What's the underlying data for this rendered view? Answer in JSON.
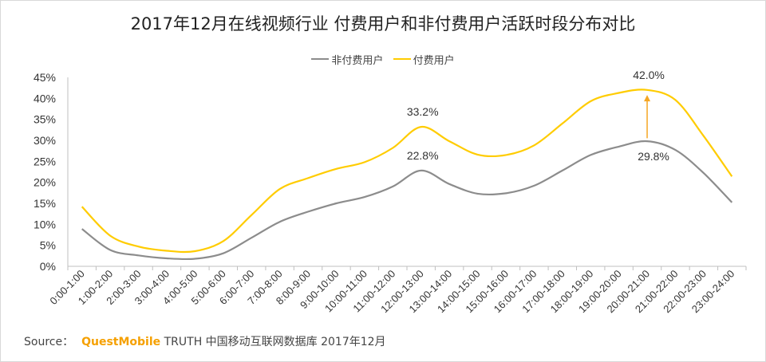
{
  "page": {
    "title": "2017年12月在线视频行业 付费用户和非付费用户活跃时段分布对比",
    "source_label": "Source：",
    "source_brand": "QuestMobile",
    "source_rest": "TRUTH 中国移动互联网数据库 2017年12月"
  },
  "colors": {
    "non_paying": "#8c8c8c",
    "paying": "#ffcc00",
    "arrow": "#f5a623",
    "axis": "#bfbfbf"
  },
  "chart_data": {
    "type": "line",
    "title": "2017年12月在线视频行业 付费用户和非付费用户活跃时段分布对比",
    "xlabel": "",
    "ylabel": "",
    "ylim": [
      0,
      45
    ],
    "y_ticks": [
      "0%",
      "5%",
      "10%",
      "15%",
      "20%",
      "25%",
      "30%",
      "35%",
      "40%",
      "45%"
    ],
    "legend_position": "top-center",
    "categories": [
      "0:00-1:00",
      "1:00-2:00",
      "2:00-3:00",
      "3:00-4:00",
      "4:00-5:00",
      "5:00-6:00",
      "6:00-7:00",
      "7:00-8:00",
      "8:00-9:00",
      "9:00-10:00",
      "10:00-11:00",
      "11:00-12:00",
      "12:00-13:00",
      "13:00-14:00",
      "14:00-15:00",
      "15:00-16:00",
      "16:00-17:00",
      "17:00-18:00",
      "18:00-19:00",
      "19:00-20:00",
      "20:00-21:00",
      "21:00-22:00",
      "22:00-23:00",
      "23:00-24:00"
    ],
    "series": [
      {
        "name": "非付费用户",
        "color": "#8c8c8c",
        "values": [
          8.9,
          3.9,
          2.6,
          1.9,
          1.8,
          3.1,
          6.8,
          10.6,
          13.0,
          15.0,
          16.5,
          19.0,
          22.8,
          19.6,
          17.3,
          17.4,
          19.2,
          22.8,
          26.5,
          28.5,
          29.8,
          27.7,
          22.2,
          15.2
        ]
      },
      {
        "name": "付费用户",
        "color": "#ffcc00",
        "values": [
          14.2,
          7.3,
          4.7,
          3.7,
          3.6,
          6.0,
          12.2,
          18.4,
          21.0,
          23.2,
          24.8,
          28.2,
          33.2,
          29.8,
          26.6,
          26.5,
          28.8,
          34.0,
          39.3,
          41.3,
          42.0,
          39.6,
          31.0,
          21.4
        ]
      }
    ],
    "annotations": [
      {
        "text": "33.2%",
        "category": "12:00-13:00",
        "value": 33.2,
        "placement": "above"
      },
      {
        "text": "22.8%",
        "category": "12:00-13:00",
        "value": 22.8,
        "placement": "above"
      },
      {
        "text": "42.0%",
        "category": "20:00-21:00",
        "value": 42.0,
        "placement": "above"
      },
      {
        "text": "29.8%",
        "category": "20:00-21:00",
        "value": 29.8,
        "placement": "below"
      }
    ],
    "arrow": {
      "from_category": "20:00-21:00",
      "from_value": 30.5,
      "to_value": 40.8
    }
  }
}
